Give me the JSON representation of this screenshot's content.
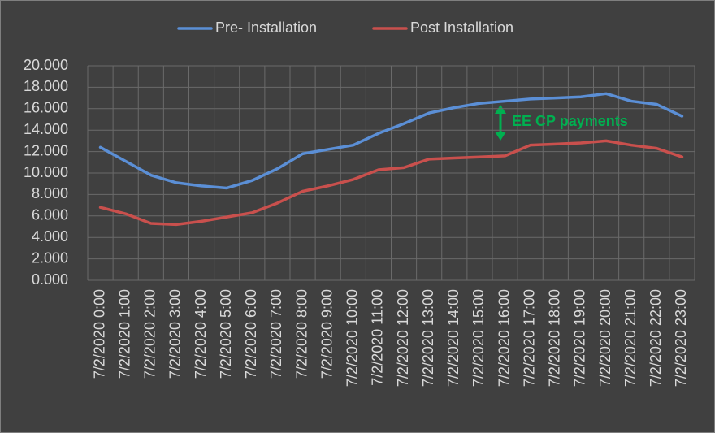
{
  "chart_data": {
    "type": "line",
    "categories": [
      "7/2/2020 0:00",
      "7/2/2020 1:00",
      "7/2/2020 2:00",
      "7/2/2020 3:00",
      "7/2/2020 4:00",
      "7/2/2020 5:00",
      "7/2/2020 6:00",
      "7/2/2020 7:00",
      "7/2/2020 8:00",
      "7/2/2020 9:00",
      "7/2/2020 10:00",
      "7/2/2020 11:00",
      "7/2/2020 12:00",
      "7/2/2020 13:00",
      "7/2/2020 14:00",
      "7/2/2020 15:00",
      "7/2/2020 16:00",
      "7/2/2020 17:00",
      "7/2/2020 18:00",
      "7/2/2020 19:00",
      "7/2/2020 20:00",
      "7/2/2020 21:00",
      "7/2/2020 22:00",
      "7/2/2020 23:00"
    ],
    "series": [
      {
        "name": "Pre- Installation",
        "color": "#5b8fd6",
        "values": [
          12.4,
          11.1,
          9.8,
          9.1,
          8.8,
          8.6,
          9.3,
          10.4,
          11.8,
          12.2,
          12.6,
          13.7,
          14.6,
          15.6,
          16.1,
          16.5,
          16.7,
          16.9,
          17.0,
          17.1,
          17.4,
          16.7,
          16.4,
          15.3
        ]
      },
      {
        "name": "Post Installation",
        "color": "#c9504d",
        "values": [
          6.8,
          6.2,
          5.3,
          5.2,
          5.5,
          5.9,
          6.3,
          7.2,
          8.3,
          8.8,
          9.4,
          10.3,
          10.5,
          11.3,
          11.4,
          11.5,
          11.6,
          12.6,
          12.7,
          12.8,
          13.0,
          12.6,
          12.3,
          11.5
        ]
      }
    ],
    "ylim": [
      0,
      20
    ],
    "yticks": [
      {
        "value": 0,
        "label": "0.000"
      },
      {
        "value": 2,
        "label": "2.000"
      },
      {
        "value": 4,
        "label": "4.000"
      },
      {
        "value": 6,
        "label": "6.000"
      },
      {
        "value": 8,
        "label": "8.000"
      },
      {
        "value": 10,
        "label": "10.000"
      },
      {
        "value": 12,
        "label": "12.000"
      },
      {
        "value": 14,
        "label": "14.000"
      },
      {
        "value": 16,
        "label": "16.000"
      },
      {
        "value": 18,
        "label": "18.000"
      },
      {
        "value": 20,
        "label": "20.000"
      }
    ],
    "grid": true,
    "legend": "top",
    "annotation": {
      "text": "EE CP payments",
      "color": "#00b050"
    }
  }
}
